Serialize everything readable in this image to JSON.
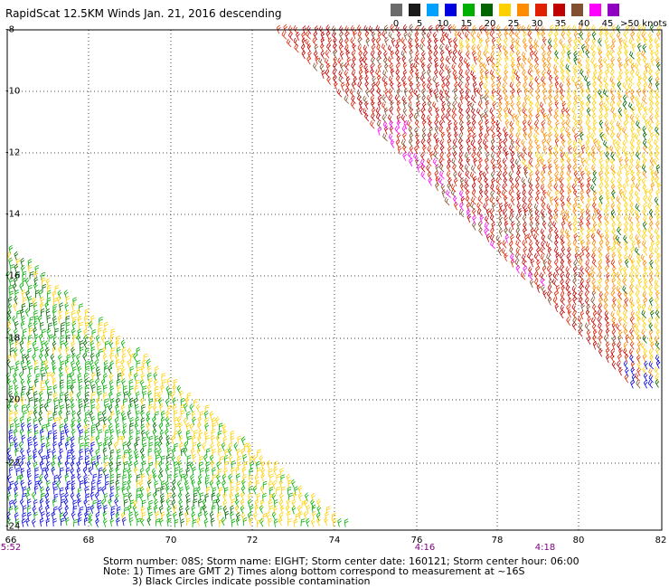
{
  "title": "RapidScat 12.5KM Winds Jan. 21, 2016 descending",
  "legend": {
    "colors": [
      "#6b6b6b",
      "#1a1a1a",
      "#00a0ff",
      "#0000e0",
      "#00b000",
      "#006400",
      "#ffd000",
      "#ff8c00",
      "#e02000",
      "#c00000",
      "#805030",
      "#ff00ff",
      "#9000c0"
    ],
    "labels": [
      "0",
      "5",
      "10",
      "15",
      "20",
      "25",
      "30",
      "35",
      "40",
      "45",
      ">50 knots"
    ]
  },
  "axes": {
    "lat_labels": [
      "-8",
      "-10",
      "-12",
      "-14",
      "-16",
      "-18",
      "-20",
      "-22",
      "-24"
    ],
    "lon_labels": [
      "66",
      "68",
      "70",
      "72",
      "74",
      "76",
      "78",
      "80",
      "82"
    ]
  },
  "time_labels": [
    "5:52",
    "4:16",
    "4:18"
  ],
  "info": {
    "line1": "Storm number: 08S;  Storm name: EIGHT;  Storm center date: 160121;  Storm center hour: 06:00",
    "line2": "Note: 1) Times are GMT  2) Times along bottom correspond to measurement at ~16S",
    "line3": "3) Black Circles indicate possible contamination"
  }
}
